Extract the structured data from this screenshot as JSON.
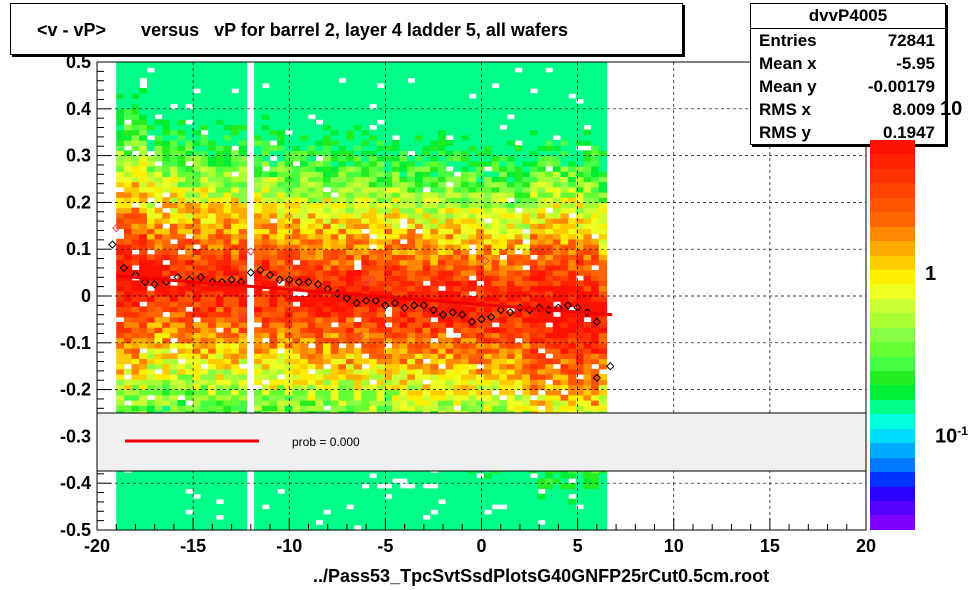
{
  "title": "<v - vP>       versus   vP for barrel 2, layer 4 ladder 5, all wafers",
  "stats": {
    "name": "dvvP4005",
    "rows": [
      {
        "k": "Entries",
        "v": "72841"
      },
      {
        "k": "Mean x",
        "v": "-5.95"
      },
      {
        "k": "Mean y",
        "v": "-0.00179"
      },
      {
        "k": "RMS x",
        "v": "8.009"
      },
      {
        "k": "RMS y",
        "v": "0.1947"
      }
    ]
  },
  "xfile_label": "../Pass53_TpcSvtSsdPlotsG40GNFP25rCut0.5cm.root",
  "legend": {
    "fit_label": "prob = 0.000"
  },
  "z_axis": {
    "labels": [
      "10",
      "1",
      "10"
    ],
    "label_suffix": "-1"
  },
  "colors": {
    "fit_line": "#ee0000",
    "palette": [
      "#7f00ff",
      "#5500ff",
      "#2b00ff",
      "#0033ff",
      "#0077ff",
      "#00aaff",
      "#00ddff",
      "#00ffdd",
      "#00ff88",
      "#00ee33",
      "#22ee22",
      "#44ff44",
      "#66ff33",
      "#88ff44",
      "#aaff33",
      "#ccff33",
      "#eeff22",
      "#ffee00",
      "#ffcc00",
      "#ffaa00",
      "#ff8800",
      "#ff6600",
      "#ff5500",
      "#ff4400",
      "#ff3300",
      "#ff2200",
      "#ff1100"
    ]
  },
  "chart_data": {
    "type": "heatmap",
    "xlim": [
      -20,
      20
    ],
    "ylim": [
      -0.5,
      0.5
    ],
    "x_ticks": [
      -20,
      -15,
      -10,
      -5,
      0,
      5,
      10,
      15,
      20
    ],
    "y_ticks": [
      -0.5,
      -0.4,
      -0.3,
      -0.2,
      -0.1,
      0,
      0.1,
      0.2,
      0.3,
      0.4,
      0.5
    ],
    "x_tick_labels": [
      "-20",
      "-15",
      "-10",
      "-5",
      "0",
      "5",
      "10",
      "15",
      "20"
    ],
    "y_tick_labels": [
      "-0.5",
      "-0.4",
      "-0.3",
      "-0.2",
      "-0.1",
      "0",
      "0.1",
      "0.2",
      "0.3",
      "0.4",
      "0.5"
    ],
    "grid": true,
    "heat_region": {
      "x_range": [
        -19,
        6.5
      ],
      "y_range": [
        -0.5,
        0.5
      ]
    },
    "profile_points": [
      {
        "x": -19.2,
        "y": 0.11
      },
      {
        "x": -18.6,
        "y": 0.06
      },
      {
        "x": -18.0,
        "y": 0.045
      },
      {
        "x": -17.5,
        "y": 0.03
      },
      {
        "x": -17.0,
        "y": 0.025
      },
      {
        "x": -16.4,
        "y": 0.03
      },
      {
        "x": -15.8,
        "y": 0.04
      },
      {
        "x": -15.2,
        "y": 0.035
      },
      {
        "x": -14.6,
        "y": 0.04
      },
      {
        "x": -14.0,
        "y": 0.03
      },
      {
        "x": -13.5,
        "y": 0.03
      },
      {
        "x": -13.0,
        "y": 0.035
      },
      {
        "x": -12.5,
        "y": 0.03
      },
      {
        "x": -12.0,
        "y": 0.05
      },
      {
        "x": -11.5,
        "y": 0.055
      },
      {
        "x": -11.0,
        "y": 0.045
      },
      {
        "x": -10.5,
        "y": 0.035
      },
      {
        "x": -10.0,
        "y": 0.035
      },
      {
        "x": -9.5,
        "y": 0.03
      },
      {
        "x": -9.0,
        "y": 0.03
      },
      {
        "x": -8.5,
        "y": 0.025
      },
      {
        "x": -8.0,
        "y": 0.015
      },
      {
        "x": -7.5,
        "y": 0.005
      },
      {
        "x": -7.0,
        "y": -0.005
      },
      {
        "x": -6.5,
        "y": -0.015
      },
      {
        "x": -6.0,
        "y": -0.01
      },
      {
        "x": -5.5,
        "y": -0.01
      },
      {
        "x": -5.0,
        "y": -0.02
      },
      {
        "x": -4.5,
        "y": -0.015
      },
      {
        "x": -4.0,
        "y": -0.025
      },
      {
        "x": -3.5,
        "y": -0.02
      },
      {
        "x": -3.0,
        "y": -0.02
      },
      {
        "x": -2.5,
        "y": -0.03
      },
      {
        "x": -2.0,
        "y": -0.04
      },
      {
        "x": -1.5,
        "y": -0.035
      },
      {
        "x": -1.0,
        "y": -0.04
      },
      {
        "x": -0.5,
        "y": -0.055
      },
      {
        "x": 0.0,
        "y": -0.05
      },
      {
        "x": 0.5,
        "y": -0.045
      },
      {
        "x": 1.0,
        "y": -0.03
      },
      {
        "x": 1.5,
        "y": -0.035
      },
      {
        "x": 2.0,
        "y": -0.025
      },
      {
        "x": 2.5,
        "y": -0.03
      },
      {
        "x": 3.0,
        "y": -0.025
      },
      {
        "x": 3.5,
        "y": -0.03
      },
      {
        "x": 4.0,
        "y": -0.025
      },
      {
        "x": 4.5,
        "y": -0.02
      },
      {
        "x": 5.0,
        "y": -0.025
      },
      {
        "x": 5.5,
        "y": -0.035
      },
      {
        "x": 6.0,
        "y": -0.055
      },
      {
        "x": 6.0,
        "y": -0.175
      },
      {
        "x": 6.7,
        "y": -0.15
      }
    ],
    "outlier_points": [
      {
        "x": -19.0,
        "y": 0.145
      },
      {
        "x": -12.5,
        "y": -0.045
      },
      {
        "x": -12.0,
        "y": 0.095
      },
      {
        "x": -6.3,
        "y": -0.085
      },
      {
        "x": -6.0,
        "y": 0.03
      },
      {
        "x": -5.7,
        "y": 0.035
      },
      {
        "x": -0.2,
        "y": -0.135
      },
      {
        "x": 0.2,
        "y": 0.075
      }
    ],
    "fit_line": {
      "x": [
        -19,
        6.8
      ],
      "y": [
        0.043,
        -0.04
      ]
    }
  }
}
